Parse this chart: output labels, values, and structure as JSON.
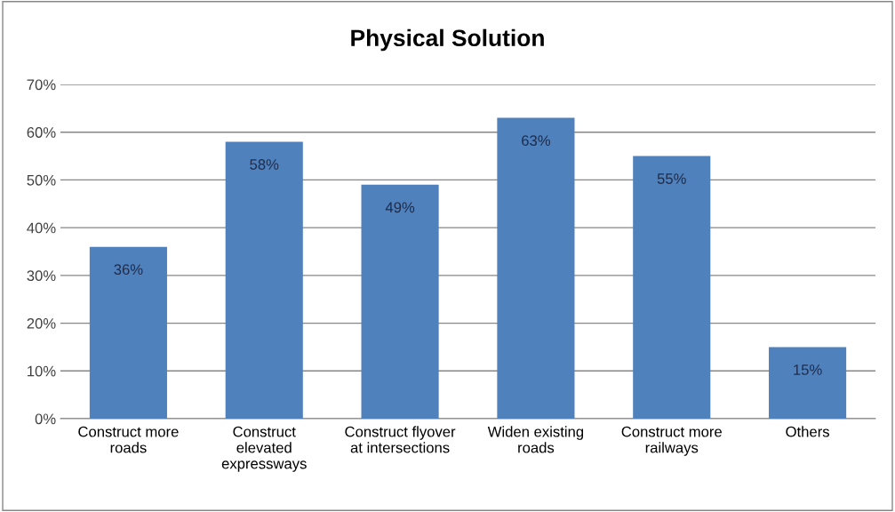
{
  "chart_data": {
    "type": "bar",
    "title": "Physical Solution",
    "categories": [
      "Construct more\nroads",
      "Construct\nelevated\nexpressways",
      "Construct flyover\nat intersections",
      "Widen existing\nroads",
      "Construct more\nrailways",
      "Others"
    ],
    "values": [
      36,
      58,
      49,
      63,
      55,
      15
    ],
    "value_labels": [
      "36%",
      "58%",
      "49%",
      "63%",
      "55%",
      "15%"
    ],
    "color": "#4f81bd",
    "ylim": [
      0,
      70
    ],
    "yticks": [
      {
        "value": 0,
        "label": "0%"
      },
      {
        "value": 10,
        "label": "10%"
      },
      {
        "value": 20,
        "label": "20%"
      },
      {
        "value": 30,
        "label": "30%"
      },
      {
        "value": 40,
        "label": "40%"
      },
      {
        "value": 50,
        "label": "50%"
      },
      {
        "value": 60,
        "label": "60%"
      },
      {
        "value": 70,
        "label": "70%"
      }
    ],
    "grid": "y",
    "legend": false
  }
}
